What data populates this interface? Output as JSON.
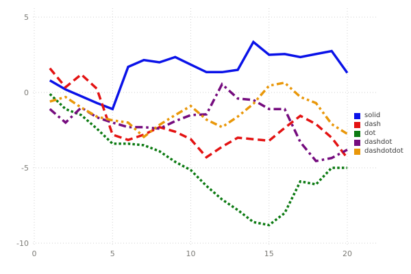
{
  "figure_title": "",
  "chart_data": {
    "type": "line",
    "x": [
      1,
      2,
      3,
      4,
      5,
      6,
      7,
      8,
      9,
      10,
      11,
      12,
      13,
      14,
      15,
      16,
      17,
      18,
      19,
      20
    ],
    "series": [
      {
        "name": "solid",
        "line_style": "solid",
        "color": "#0a12e8",
        "values": [
          0.8,
          0.2,
          -0.25,
          -0.7,
          -1.1,
          1.7,
          2.15,
          2.0,
          2.35,
          1.85,
          1.35,
          1.35,
          1.5,
          3.35,
          2.5,
          2.55,
          2.35,
          2.55,
          2.75,
          1.3
        ]
      },
      {
        "name": "dash",
        "line_style": "dash",
        "color": "#e31212",
        "values": [
          1.6,
          0.35,
          1.2,
          0.25,
          -2.8,
          -3.15,
          -2.8,
          -2.3,
          -2.6,
          -3.1,
          -4.3,
          -3.6,
          -3.0,
          -3.1,
          -3.2,
          -2.35,
          -1.55,
          -2.1,
          -3.0,
          -4.35
        ]
      },
      {
        "name": "dot",
        "line_style": "dot",
        "color": "#0c7a12",
        "values": [
          -0.1,
          -1.1,
          -1.5,
          -2.4,
          -3.4,
          -3.4,
          -3.5,
          -3.9,
          -4.6,
          -5.15,
          -6.2,
          -7.1,
          -7.8,
          -8.6,
          -8.8,
          -8.0,
          -5.9,
          -6.1,
          -5.0,
          -5.0
        ]
      },
      {
        "name": "dashdot",
        "line_style": "dashdot",
        "color": "#750b7e",
        "values": [
          -1.1,
          -2.0,
          -1.0,
          -1.65,
          -2.0,
          -2.3,
          -2.3,
          -2.4,
          -1.9,
          -1.5,
          -1.45,
          0.55,
          -0.4,
          -0.5,
          -1.1,
          -1.1,
          -3.3,
          -4.55,
          -4.35,
          -3.8
        ]
      },
      {
        "name": "dashdotdot",
        "line_style": "dashdotdot",
        "color": "#e99709",
        "values": [
          -0.6,
          -0.3,
          -1.0,
          -1.6,
          -1.85,
          -2.0,
          -2.95,
          -2.15,
          -1.5,
          -0.9,
          -1.8,
          -2.3,
          -1.6,
          -0.75,
          0.45,
          0.65,
          -0.3,
          -0.7,
          -2.1,
          -2.75
        ]
      }
    ],
    "title": "",
    "xlabel": "",
    "ylabel": "",
    "x_ticks": [
      0,
      5,
      10,
      15,
      20
    ],
    "y_ticks": [
      5,
      0,
      -5,
      -10
    ],
    "x_tick_labels": [
      "0",
      "5",
      "10",
      "15",
      "20"
    ],
    "y_tick_labels": [
      "5",
      "0",
      "-5",
      "-10"
    ],
    "xlim": [
      0,
      21.9
    ],
    "ylim": [
      -10.2,
      5.6
    ],
    "grid": true,
    "grid_color": "#cfcfcf",
    "background_color": "#ffffff",
    "tick_label_color": "#7b7a75",
    "legend_position": "right"
  },
  "legend": {
    "entries": [
      {
        "label": "solid",
        "color": "#0a12e8"
      },
      {
        "label": "dash",
        "color": "#e31212"
      },
      {
        "label": "dot",
        "color": "#0c7a12"
      },
      {
        "label": "dashdot",
        "color": "#750b7e"
      },
      {
        "label": "dashdotdot",
        "color": "#e99709"
      }
    ]
  }
}
